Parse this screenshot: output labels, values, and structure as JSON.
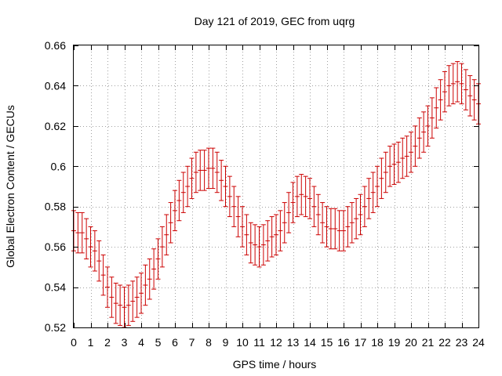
{
  "chart_data": {
    "type": "scatter",
    "style": "errorbars",
    "title": "Day 121 of 2019, GEC from uqrg",
    "xlabel": "GPS time / hours",
    "ylabel": "Global Electron Content / GECUs",
    "xlim": [
      0,
      24
    ],
    "ylim": [
      0.52,
      0.66
    ],
    "x_ticks": [
      0,
      1,
      2,
      3,
      4,
      5,
      6,
      7,
      8,
      9,
      10,
      11,
      12,
      13,
      14,
      15,
      16,
      17,
      18,
      19,
      20,
      21,
      22,
      23,
      24
    ],
    "x_tick_labels": [
      "0",
      "1",
      "2",
      "3",
      "4",
      "5",
      "6",
      "7",
      "8",
      "9",
      "10",
      "11",
      "12",
      "13",
      "14",
      "15",
      "16",
      "17",
      "18",
      "19",
      "20",
      "21",
      "22",
      "23",
      "24"
    ],
    "y_ticks": [
      0.52,
      0.54,
      0.56,
      0.58,
      0.6,
      0.62,
      0.64,
      0.66
    ],
    "y_tick_labels": [
      "0.52",
      "0.54",
      "0.56",
      "0.58",
      "0.6",
      "0.62",
      "0.64",
      "0.66"
    ],
    "grid": true,
    "series": [
      {
        "name": "GEC",
        "color": "#cc0000",
        "error": 0.01,
        "x": [
          0,
          0.25,
          0.5,
          0.75,
          1,
          1.25,
          1.5,
          1.75,
          2,
          2.25,
          2.5,
          2.75,
          3,
          3.25,
          3.5,
          3.75,
          4,
          4.25,
          4.5,
          4.75,
          5,
          5.25,
          5.5,
          5.75,
          6,
          6.25,
          6.5,
          6.75,
          7,
          7.25,
          7.5,
          7.75,
          8,
          8.25,
          8.5,
          8.75,
          9,
          9.25,
          9.5,
          9.75,
          10,
          10.25,
          10.5,
          10.75,
          11,
          11.25,
          11.5,
          11.75,
          12,
          12.25,
          12.5,
          12.75,
          13,
          13.25,
          13.5,
          13.75,
          14,
          14.25,
          14.5,
          14.75,
          15,
          15.25,
          15.5,
          15.75,
          16,
          16.25,
          16.5,
          16.75,
          17,
          17.25,
          17.5,
          17.75,
          18,
          18.25,
          18.5,
          18.75,
          19,
          19.25,
          19.5,
          19.75,
          20,
          20.25,
          20.5,
          20.75,
          21,
          21.25,
          21.5,
          21.75,
          22,
          22.25,
          22.5,
          22.75,
          23,
          23.25,
          23.5,
          23.75,
          24
        ],
        "values": [
          0.568,
          0.567,
          0.567,
          0.564,
          0.56,
          0.558,
          0.553,
          0.546,
          0.54,
          0.535,
          0.532,
          0.531,
          0.53,
          0.531,
          0.533,
          0.535,
          0.537,
          0.541,
          0.544,
          0.549,
          0.554,
          0.56,
          0.566,
          0.572,
          0.578,
          0.583,
          0.587,
          0.59,
          0.594,
          0.597,
          0.598,
          0.598,
          0.599,
          0.599,
          0.597,
          0.593,
          0.59,
          0.585,
          0.58,
          0.575,
          0.57,
          0.566,
          0.562,
          0.561,
          0.56,
          0.561,
          0.563,
          0.565,
          0.566,
          0.568,
          0.572,
          0.577,
          0.582,
          0.585,
          0.586,
          0.585,
          0.584,
          0.58,
          0.576,
          0.572,
          0.57,
          0.569,
          0.569,
          0.568,
          0.568,
          0.57,
          0.572,
          0.574,
          0.576,
          0.58,
          0.584,
          0.587,
          0.59,
          0.594,
          0.597,
          0.6,
          0.601,
          0.602,
          0.604,
          0.605,
          0.607,
          0.61,
          0.614,
          0.617,
          0.62,
          0.624,
          0.629,
          0.633,
          0.637,
          0.64,
          0.641,
          0.642,
          0.641,
          0.638,
          0.635,
          0.633,
          0.631
        ]
      }
    ]
  }
}
